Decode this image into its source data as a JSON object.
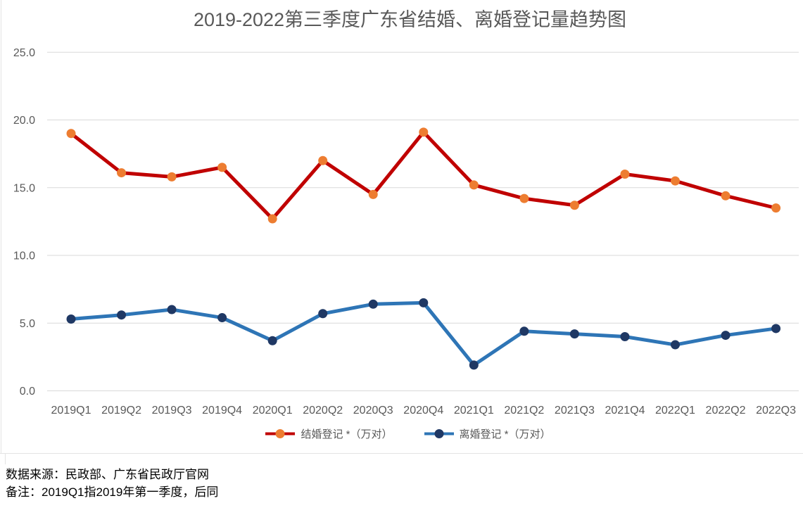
{
  "chart_data": {
    "type": "line",
    "title": "2019-2022第三季度广东省结婚、离婚登记量趋势图",
    "categories": [
      "2019Q1",
      "2019Q2",
      "2019Q3",
      "2019Q4",
      "2020Q1",
      "2020Q2",
      "2020Q3",
      "2020Q4",
      "2021Q1",
      "2021Q2",
      "2021Q3",
      "2021Q4",
      "2022Q1",
      "2022Q2",
      "2022Q3"
    ],
    "series": [
      {
        "key": "marriage",
        "name": "结婚登记 *（万对）",
        "values": [
          19.0,
          16.1,
          15.8,
          16.5,
          12.7,
          17.0,
          14.5,
          19.1,
          15.2,
          14.2,
          13.7,
          16.0,
          15.5,
          14.4,
          13.5
        ],
        "line_color": "#C00000",
        "marker_color": "#ED7D31"
      },
      {
        "key": "divorce",
        "name": "离婚登记 *（万对）",
        "values": [
          5.3,
          5.6,
          6.0,
          5.4,
          3.7,
          5.7,
          6.4,
          6.5,
          1.9,
          4.4,
          4.2,
          4.0,
          3.4,
          4.1,
          4.6
        ],
        "line_color": "#2E75B6",
        "marker_color": "#1F3864"
      }
    ],
    "xlabel": "",
    "ylabel": "",
    "ylim": [
      0,
      25
    ],
    "ytick_step": 5,
    "ytick_labels": [
      "0.0",
      "5.0",
      "10.0",
      "15.0",
      "20.0",
      "25.0"
    ],
    "grid": true,
    "legend_position": "bottom"
  },
  "footer": {
    "source_note": "数据来源：民政部、广东省民政厅官网",
    "remark_note": "备注：2019Q1指2019年第一季度，后同"
  },
  "colors": {
    "title_text": "#595959",
    "axis_text": "#595959",
    "legend_text": "#595959",
    "footer_text": "#000000",
    "gridline": "#D9D9D9",
    "sheet_border": "#E4E4E4",
    "background": "#FFFFFF"
  }
}
